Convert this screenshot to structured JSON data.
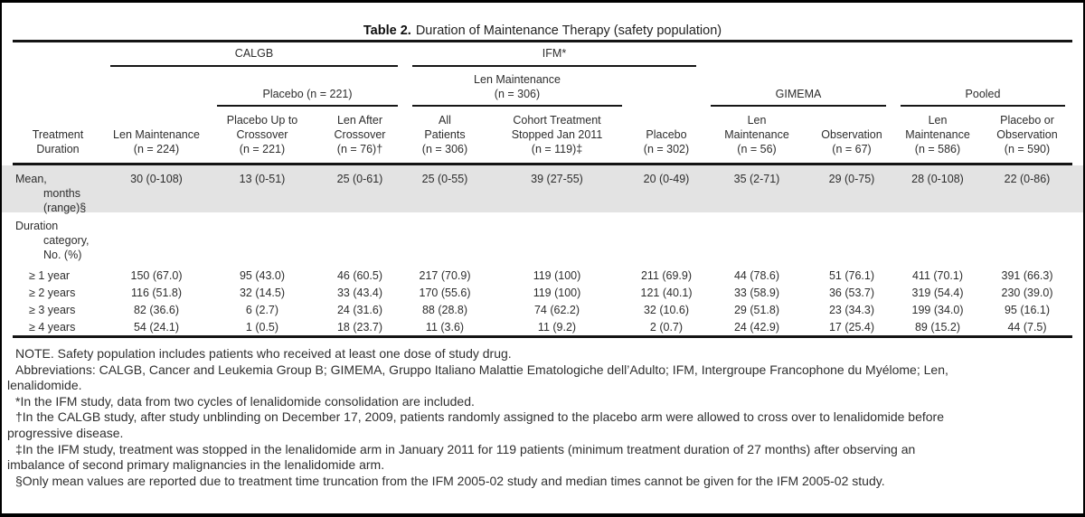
{
  "colors": {
    "row_shade": "#e3e3e3",
    "rule": "#141414"
  },
  "title": {
    "label": "Table 2.",
    "caption": "Duration of Maintenance Therapy (safety population)"
  },
  "header": {
    "stub_lines": [
      "Treatment",
      "Duration"
    ],
    "group_spanners": [
      {
        "label": "CALGB",
        "cols": [
          0,
          2
        ]
      },
      {
        "label": "IFM*",
        "cols": [
          3,
          5
        ]
      }
    ],
    "subgroup_spanners": [
      {
        "lines": [
          "Placebo (n = 221)"
        ],
        "cols": [
          1,
          2
        ]
      },
      {
        "lines": [
          "Len Maintenance",
          "(n = 306)"
        ],
        "cols": [
          3,
          4
        ]
      },
      {
        "lines": [
          "GIMEMA"
        ],
        "cols": [
          6,
          7
        ]
      },
      {
        "lines": [
          "Pooled"
        ],
        "cols": [
          8,
          9
        ]
      }
    ],
    "columns": [
      {
        "lines": [
          "Len Maintenance",
          "(n = 224)"
        ]
      },
      {
        "lines": [
          "Placebo Up to",
          "Crossover",
          "(n = 221)"
        ]
      },
      {
        "lines": [
          "Len After",
          "Crossover",
          "(n = 76)†"
        ]
      },
      {
        "lines": [
          "All",
          "Patients",
          "(n = 306)"
        ]
      },
      {
        "lines": [
          "Cohort Treatment",
          "Stopped Jan 2011",
          "(n = 119)‡"
        ]
      },
      {
        "lines": [
          "Placebo",
          "(n = 302)"
        ]
      },
      {
        "lines": [
          "Len",
          "Maintenance",
          "(n = 56)"
        ]
      },
      {
        "lines": [
          "Observation",
          "(n = 67)"
        ]
      },
      {
        "lines": [
          "Len",
          "Maintenance",
          "(n = 586)"
        ]
      },
      {
        "lines": [
          "Placebo or",
          "Observation",
          "(n = 590)"
        ]
      }
    ]
  },
  "rows": [
    {
      "label_lines": [
        "Mean,",
        "months",
        "(range)§"
      ],
      "style": "hang",
      "shaded": true,
      "values": [
        "30 (0-108)",
        "13 (0-51)",
        "25 (0-61)",
        "25 (0-55)",
        "39 (27-55)",
        "20 (0-49)",
        "35 (2-71)",
        "29 (0-75)",
        "28 (0-108)",
        "22 (0-86)"
      ]
    },
    {
      "label_lines": [
        "Duration",
        "category,",
        "No. (%)"
      ],
      "style": "hang",
      "shaded": false,
      "values": []
    },
    {
      "label_lines": [
        "≥ 1 year"
      ],
      "style": "item",
      "shaded": false,
      "values": [
        "150 (67.0)",
        "95 (43.0)",
        "46 (60.5)",
        "217 (70.9)",
        "119 (100)",
        "211 (69.9)",
        "44 (78.6)",
        "51 (76.1)",
        "411 (70.1)",
        "391 (66.3)"
      ]
    },
    {
      "label_lines": [
        "≥ 2 years"
      ],
      "style": "item",
      "shaded": false,
      "values": [
        "116 (51.8)",
        "32 (14.5)",
        "33 (43.4)",
        "170 (55.6)",
        "119 (100)",
        "121 (40.1)",
        "33 (58.9)",
        "36 (53.7)",
        "319 (54.4)",
        "230 (39.0)"
      ]
    },
    {
      "label_lines": [
        "≥ 3 years"
      ],
      "style": "item",
      "shaded": false,
      "values": [
        "82 (36.6)",
        "6 (2.7)",
        "24 (31.6)",
        "88 (28.8)",
        "74 (62.2)",
        "32 (10.6)",
        "29 (51.8)",
        "23 (34.3)",
        "199 (34.0)",
        "95 (16.1)"
      ]
    },
    {
      "label_lines": [
        "≥ 4 years"
      ],
      "style": "item",
      "shaded": false,
      "values": [
        "54 (24.1)",
        "1 (0.5)",
        "18 (23.7)",
        "11 (3.6)",
        "11 (9.2)",
        "2 (0.7)",
        "24 (42.9)",
        "17 (25.4)",
        "89 (15.2)",
        "44 (7.5)"
      ]
    }
  ],
  "footnotes": [
    {
      "lines": [
        "NOTE. Safety population includes patients who received at least one dose of study drug."
      ]
    },
    {
      "lines": [
        "Abbreviations: CALGB, Cancer and Leukemia Group B; GIMEMA, Gruppo Italiano Malattie Ematologiche dell’Adulto; IFM, Intergroupe Francophone du Myélome; Len,",
        "lenalidomide."
      ]
    },
    {
      "lines": [
        "*In the IFM study, data from two cycles of lenalidomide consolidation are included."
      ]
    },
    {
      "lines": [
        "†In the CALGB study, after study unblinding on December 17, 2009, patients randomly assigned to the placebo arm were allowed to cross over to lenalidomide before",
        "progressive disease."
      ]
    },
    {
      "lines": [
        "‡In the IFM study, treatment was stopped in the lenalidomide arm in January 2011 for 119 patients (minimum treatment duration of 27 months) after observing an",
        "imbalance of second primary malignancies in the lenalidomide arm."
      ]
    },
    {
      "lines": [
        "§Only mean values are reported due to treatment time truncation from the IFM 2005-02 study and median times cannot be given for the IFM 2005-02 study."
      ]
    }
  ]
}
